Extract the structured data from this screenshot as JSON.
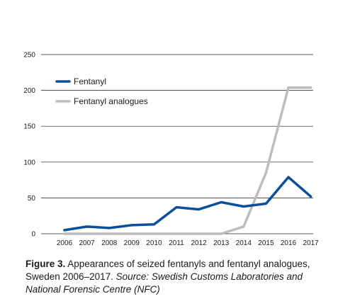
{
  "chart_data": {
    "type": "line",
    "x": [
      2006,
      2007,
      2008,
      2009,
      2010,
      2011,
      2012,
      2013,
      2014,
      2015,
      2016,
      2017
    ],
    "x_tick_labels": [
      "2006",
      "2007",
      "2008",
      "2009",
      "2010",
      "2011",
      "2012",
      "2013",
      "2014",
      "2015",
      "2016",
      "2017"
    ],
    "y_ticks": [
      0,
      50,
      100,
      150,
      200,
      250
    ],
    "y_tick_labels": [
      "0",
      "50",
      "100",
      "150",
      "200",
      "250"
    ],
    "ylim": [
      0,
      250
    ],
    "grid": "horizontal",
    "legend_position": "top-left",
    "series": [
      {
        "name": "Fentanyl",
        "color": "#0a4f9c",
        "values": [
          5,
          10,
          8,
          12,
          13,
          37,
          34,
          44,
          38,
          42,
          79,
          52
        ]
      },
      {
        "name": "Fentanyl analogues",
        "color": "#bdbdbd",
        "values": [
          0,
          0,
          0,
          0,
          0,
          0,
          0,
          0,
          10,
          85,
          204,
          204
        ]
      }
    ]
  },
  "caption": {
    "label": "Figure 3.",
    "text": " Appearances of seized fentanyls and fentanyl analogues, Sweden 2006–2017. ",
    "source": "Source: Swedish Customs Laboratories and National Forensic Centre (NFC)"
  }
}
